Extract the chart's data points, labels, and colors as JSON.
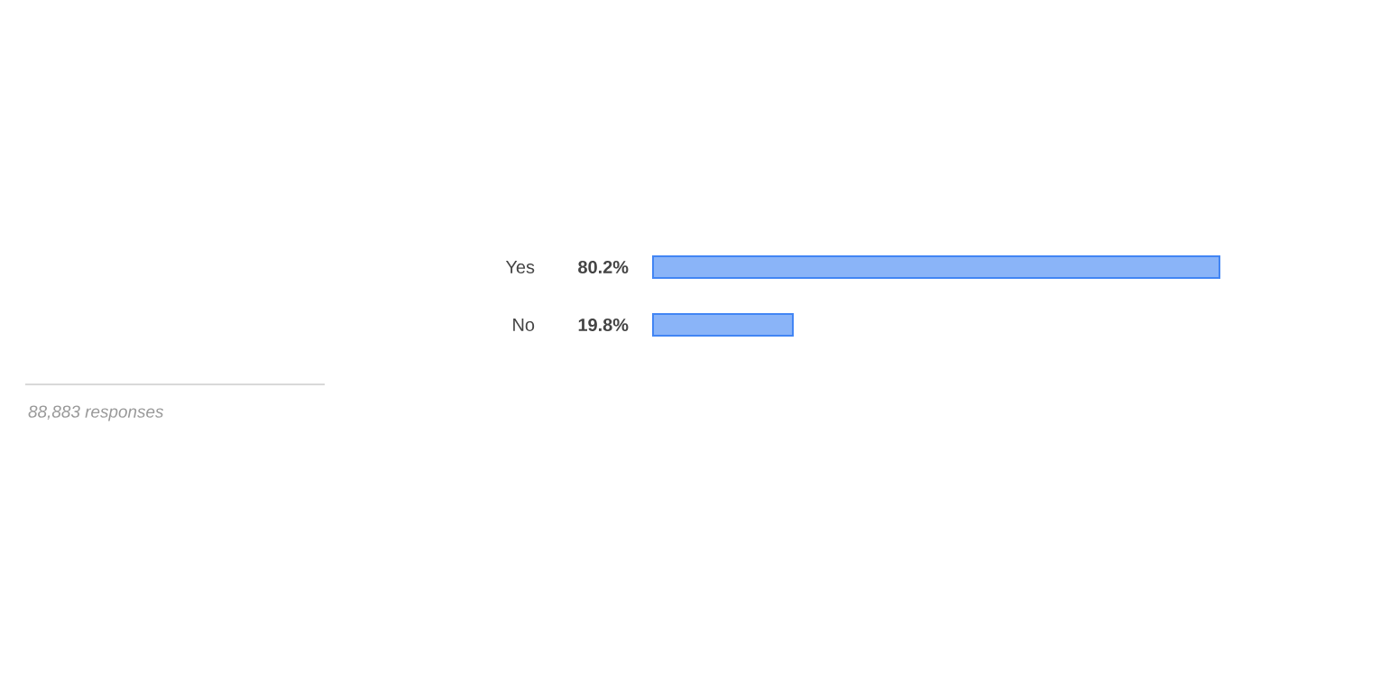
{
  "chart_data": {
    "type": "bar",
    "orientation": "horizontal",
    "categories": [
      "Yes",
      "No"
    ],
    "values": [
      80.2,
      19.8
    ],
    "value_labels": [
      "80.2%",
      "19.8%"
    ],
    "color": "#8ab4f8",
    "annotations": [
      "88,883 responses"
    ]
  }
}
